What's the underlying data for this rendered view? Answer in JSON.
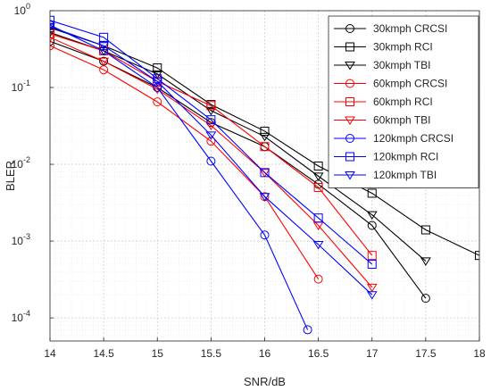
{
  "chart_data": {
    "type": "line",
    "xlabel": "SNR/dB",
    "ylabel": "BLER",
    "xscale": "linear",
    "yscale": "log",
    "xlim": [
      14,
      18
    ],
    "ylim": [
      5e-05,
      1
    ],
    "grid": true,
    "minor_grid": true,
    "legend_position": "top-right",
    "x_ticks": [
      "14",
      "14.5",
      "15",
      "15.5",
      "16",
      "16.5",
      "17",
      "17.5",
      "18"
    ],
    "series": [
      {
        "name": "30kmph CRCSI",
        "color": "#000000",
        "marker": "circle",
        "x": [
          14,
          14.5,
          15,
          15.5,
          16,
          16.5,
          17,
          17.5
        ],
        "y": [
          0.4,
          0.22,
          0.1,
          0.035,
          0.017,
          0.0055,
          0.0016,
          0.00018
        ]
      },
      {
        "name": "30kmph RCI",
        "color": "#000000",
        "marker": "square",
        "x": [
          14,
          14.5,
          15,
          15.5,
          16,
          16.5,
          17,
          17.5,
          18
        ],
        "y": [
          0.6,
          0.35,
          0.18,
          0.06,
          0.027,
          0.0095,
          0.0042,
          0.0014,
          0.00065
        ]
      },
      {
        "name": "30kmph TBI",
        "color": "#000000",
        "marker": "triangle-down",
        "x": [
          14,
          14.5,
          15,
          15.5,
          16,
          16.5,
          17,
          17.5
        ],
        "y": [
          0.52,
          0.3,
          0.15,
          0.05,
          0.023,
          0.007,
          0.0022,
          0.00055
        ]
      },
      {
        "name": "60kmph CRCSI",
        "color": "#ff0000",
        "marker": "circle",
        "x": [
          14,
          14.5,
          15,
          15.5,
          16,
          16.5
        ],
        "y": [
          0.35,
          0.17,
          0.065,
          0.02,
          0.0038,
          0.00032
        ]
      },
      {
        "name": "60kmph RCI",
        "color": "#ff0000",
        "marker": "square",
        "x": [
          14,
          14.5,
          15,
          15.5,
          16,
          16.5,
          17
        ],
        "y": [
          0.5,
          0.3,
          0.12,
          0.058,
          0.017,
          0.005,
          0.00065
        ]
      },
      {
        "name": "60kmph TBI",
        "color": "#ff0000",
        "marker": "triangle-down",
        "x": [
          14,
          14.5,
          15,
          15.5,
          16,
          16.5,
          17
        ],
        "y": [
          0.45,
          0.22,
          0.095,
          0.032,
          0.0078,
          0.0016,
          0.00025
        ]
      },
      {
        "name": "120kmph CRCSI",
        "color": "#0000ff",
        "marker": "circle",
        "x": [
          14,
          14.5,
          15,
          15.5,
          16,
          16.4
        ],
        "y": [
          0.65,
          0.3,
          0.1,
          0.011,
          0.0012,
          7e-05
        ]
      },
      {
        "name": "120kmph RCI",
        "color": "#0000ff",
        "marker": "square",
        "x": [
          14,
          14.5,
          15,
          15.5,
          16,
          16.5,
          17
        ],
        "y": [
          0.75,
          0.45,
          0.13,
          0.038,
          0.0078,
          0.002,
          0.0005
        ]
      },
      {
        "name": "120kmph TBI",
        "color": "#0000ff",
        "marker": "triangle-down",
        "x": [
          14,
          14.5,
          15,
          15.5,
          16,
          16.5,
          17
        ],
        "y": [
          0.62,
          0.35,
          0.12,
          0.024,
          0.0038,
          0.0009,
          0.0002
        ]
      }
    ]
  }
}
